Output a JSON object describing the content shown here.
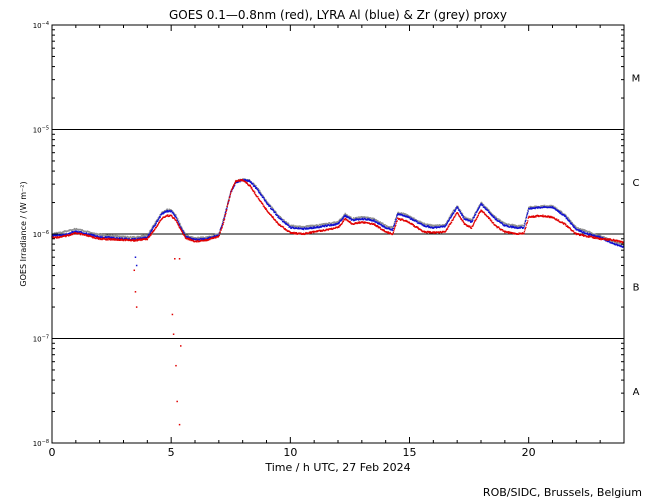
{
  "chart_data": {
    "type": "scatter",
    "title": "GOES 0.1—0.8nm (red), LYRA Al (blue) & Zr (grey) proxy",
    "xlabel": "Time / h UTC, 27 Feb 2024",
    "ylabel": "GOES Irradiance / (W m⁻²)",
    "credit": "ROB/SIDC, Brussels, Belgium",
    "xlim": [
      0,
      24
    ],
    "ylim": [
      1e-08,
      0.0001
    ],
    "yscale": "log",
    "grid": false,
    "x_ticks": [
      0,
      5,
      10,
      15,
      20
    ],
    "y_tick_labels": [
      {
        "value": 1e-08,
        "base": "10",
        "exp": "−8"
      },
      {
        "value": 1e-07,
        "base": "10",
        "exp": "−7"
      },
      {
        "value": 1e-06,
        "base": "10",
        "exp": "−6"
      },
      {
        "value": 1e-05,
        "base": "10",
        "exp": "−5"
      },
      {
        "value": 0.0001,
        "base": "10",
        "exp": "−4"
      }
    ],
    "flare_class_lines": [
      1e-07,
      1e-06,
      1e-05
    ],
    "flare_classes": [
      {
        "label": "A",
        "value": 3.16e-08
      },
      {
        "label": "B",
        "value": 3.16e-07
      },
      {
        "label": "C",
        "value": 3.16e-06
      },
      {
        "label": "M",
        "value": 3.16e-05
      }
    ],
    "colors": {
      "goes": "#e00000",
      "lyra_al": "#1010d0",
      "lyra_zr": "#909090"
    },
    "series": [
      {
        "color": "#e00000",
        "points": [
          [
            0,
            9.2e-07
          ],
          [
            0.5,
            9.5e-07
          ],
          [
            1,
            1.02e-06
          ],
          [
            1.5,
            9.6e-07
          ],
          [
            2,
            9e-07
          ],
          [
            2.5,
            8.9e-07
          ],
          [
            3,
            8.8e-07
          ],
          [
            3.5,
            8.7e-07
          ],
          [
            4,
            9e-07
          ],
          [
            4.3,
            1.1e-06
          ],
          [
            4.6,
            1.4e-06
          ],
          [
            4.8,
            1.5e-06
          ],
          [
            5,
            1.5e-06
          ],
          [
            5.2,
            1.35e-06
          ],
          [
            5.4,
            1.1e-06
          ],
          [
            5.6,
            9.2e-07
          ],
          [
            6,
            8.5e-07
          ],
          [
            6.5,
            8.8e-07
          ],
          [
            7,
            9.5e-07
          ],
          [
            7.2,
            1.3e-06
          ],
          [
            7.5,
            2.5e-06
          ],
          [
            7.7,
            3.2e-06
          ],
          [
            8,
            3.3e-06
          ],
          [
            8.3,
            2.9e-06
          ],
          [
            8.6,
            2.3e-06
          ],
          [
            9,
            1.7e-06
          ],
          [
            9.5,
            1.25e-06
          ],
          [
            10,
            1.03e-06
          ],
          [
            10.5,
            1e-06
          ],
          [
            11,
            1.05e-06
          ],
          [
            11.5,
            1.1e-06
          ],
          [
            12,
            1.15e-06
          ],
          [
            12.3,
            1.4e-06
          ],
          [
            12.6,
            1.25e-06
          ],
          [
            13,
            1.3e-06
          ],
          [
            13.5,
            1.25e-06
          ],
          [
            14,
            1.05e-06
          ],
          [
            14.3,
            1e-06
          ],
          [
            14.5,
            1.4e-06
          ],
          [
            14.8,
            1.35e-06
          ],
          [
            15.2,
            1.2e-06
          ],
          [
            15.6,
            1.05e-06
          ],
          [
            16,
            1.03e-06
          ],
          [
            16.5,
            1.05e-06
          ],
          [
            16.8,
            1.35e-06
          ],
          [
            17,
            1.6e-06
          ],
          [
            17.3,
            1.25e-06
          ],
          [
            17.6,
            1.15e-06
          ],
          [
            18,
            1.7e-06
          ],
          [
            18.3,
            1.45e-06
          ],
          [
            18.6,
            1.2e-06
          ],
          [
            19,
            1.05e-06
          ],
          [
            19.5,
            1e-06
          ],
          [
            19.8,
            1.02e-06
          ],
          [
            20,
            1.45e-06
          ],
          [
            20.5,
            1.5e-06
          ],
          [
            21,
            1.45e-06
          ],
          [
            21.5,
            1.25e-06
          ],
          [
            22,
            1e-06
          ],
          [
            22.5,
            9.5e-07
          ],
          [
            23,
            9e-07
          ],
          [
            23.5,
            8.8e-07
          ],
          [
            24,
            8.3e-07
          ]
        ]
      },
      {
        "color": "#1010d0",
        "points": [
          [
            0,
            9.6e-07
          ],
          [
            0.5,
            9.8e-07
          ],
          [
            1,
            1.06e-06
          ],
          [
            1.5,
            1e-06
          ],
          [
            2,
            9.4e-07
          ],
          [
            2.5,
            9.2e-07
          ],
          [
            3,
            9e-07
          ],
          [
            3.5,
            8.9e-07
          ],
          [
            4,
            9.3e-07
          ],
          [
            4.3,
            1.2e-06
          ],
          [
            4.6,
            1.55e-06
          ],
          [
            4.8,
            1.65e-06
          ],
          [
            5,
            1.65e-06
          ],
          [
            5.2,
            1.45e-06
          ],
          [
            5.4,
            1.15e-06
          ],
          [
            5.6,
            9.5e-07
          ],
          [
            6,
            8.8e-07
          ],
          [
            6.5,
            9e-07
          ],
          [
            7,
            9.8e-07
          ],
          [
            7.2,
            1.35e-06
          ],
          [
            7.5,
            2.5e-06
          ],
          [
            7.7,
            3.1e-06
          ],
          [
            8,
            3.3e-06
          ],
          [
            8.3,
            3.2e-06
          ],
          [
            8.6,
            2.7e-06
          ],
          [
            9,
            2e-06
          ],
          [
            9.5,
            1.45e-06
          ],
          [
            10,
            1.15e-06
          ],
          [
            10.5,
            1.12e-06
          ],
          [
            11,
            1.15e-06
          ],
          [
            11.5,
            1.2e-06
          ],
          [
            12,
            1.25e-06
          ],
          [
            12.3,
            1.5e-06
          ],
          [
            12.6,
            1.35e-06
          ],
          [
            13,
            1.4e-06
          ],
          [
            13.5,
            1.35e-06
          ],
          [
            14,
            1.15e-06
          ],
          [
            14.3,
            1.1e-06
          ],
          [
            14.5,
            1.55e-06
          ],
          [
            14.8,
            1.5e-06
          ],
          [
            15.2,
            1.35e-06
          ],
          [
            15.6,
            1.2e-06
          ],
          [
            16,
            1.15e-06
          ],
          [
            16.5,
            1.18e-06
          ],
          [
            16.8,
            1.55e-06
          ],
          [
            17,
            1.8e-06
          ],
          [
            17.3,
            1.4e-06
          ],
          [
            17.6,
            1.3e-06
          ],
          [
            18,
            1.95e-06
          ],
          [
            18.3,
            1.65e-06
          ],
          [
            18.6,
            1.4e-06
          ],
          [
            19,
            1.2e-06
          ],
          [
            19.5,
            1.15e-06
          ],
          [
            19.8,
            1.15e-06
          ],
          [
            20,
            1.75e-06
          ],
          [
            20.5,
            1.8e-06
          ],
          [
            21,
            1.8e-06
          ],
          [
            21.5,
            1.5e-06
          ],
          [
            22,
            1.1e-06
          ],
          [
            22.5,
            1e-06
          ],
          [
            23,
            9.3e-07
          ],
          [
            23.5,
            8.2e-07
          ],
          [
            24,
            7.5e-07
          ]
        ]
      },
      {
        "color": "#909090",
        "points": [
          [
            0,
            1e-06
          ],
          [
            0.5,
            1.05e-06
          ],
          [
            1,
            1.12e-06
          ],
          [
            1.5,
            1.05e-06
          ],
          [
            2,
            9.8e-07
          ],
          [
            2.5,
            9.6e-07
          ],
          [
            3,
            9.4e-07
          ],
          [
            3.5,
            9.3e-07
          ],
          [
            4,
            9.7e-07
          ],
          [
            4.3,
            1.25e-06
          ],
          [
            4.6,
            1.6e-06
          ],
          [
            4.8,
            1.7e-06
          ],
          [
            5,
            1.7e-06
          ],
          [
            5.2,
            1.5e-06
          ],
          [
            5.4,
            1.2e-06
          ],
          [
            5.6,
            9.8e-07
          ],
          [
            6,
            9.1e-07
          ],
          [
            6.5,
            9.3e-07
          ],
          [
            7,
            1e-06
          ],
          [
            7.2,
            1.4e-06
          ],
          [
            7.5,
            2.55e-06
          ],
          [
            7.7,
            3.15e-06
          ],
          [
            8,
            3.35e-06
          ],
          [
            8.3,
            3.25e-06
          ],
          [
            8.6,
            2.8e-06
          ],
          [
            9,
            2.05e-06
          ],
          [
            9.5,
            1.5e-06
          ],
          [
            10,
            1.2e-06
          ],
          [
            10.5,
            1.17e-06
          ],
          [
            11,
            1.2e-06
          ],
          [
            11.5,
            1.25e-06
          ],
          [
            12,
            1.3e-06
          ],
          [
            12.3,
            1.55e-06
          ],
          [
            12.6,
            1.4e-06
          ],
          [
            13,
            1.45e-06
          ],
          [
            13.5,
            1.4e-06
          ],
          [
            14,
            1.2e-06
          ],
          [
            14.3,
            1.15e-06
          ],
          [
            14.5,
            1.6e-06
          ],
          [
            14.8,
            1.55e-06
          ],
          [
            15.2,
            1.4e-06
          ],
          [
            15.6,
            1.25e-06
          ],
          [
            16,
            1.2e-06
          ],
          [
            16.5,
            1.22e-06
          ],
          [
            16.8,
            1.6e-06
          ],
          [
            17,
            1.85e-06
          ],
          [
            17.3,
            1.45e-06
          ],
          [
            17.6,
            1.35e-06
          ],
          [
            18,
            2e-06
          ],
          [
            18.3,
            1.7e-06
          ],
          [
            18.6,
            1.45e-06
          ],
          [
            19,
            1.25e-06
          ],
          [
            19.5,
            1.2e-06
          ],
          [
            19.8,
            1.2e-06
          ],
          [
            20,
            1.8e-06
          ],
          [
            20.5,
            1.85e-06
          ],
          [
            21,
            1.85e-06
          ],
          [
            21.5,
            1.55e-06
          ],
          [
            22,
            1.15e-06
          ],
          [
            22.5,
            1.05e-06
          ],
          [
            23,
            9.6e-07
          ],
          [
            23.5,
            8.6e-07
          ],
          [
            24,
            7.8e-07
          ]
        ]
      }
    ],
    "outlier_points": [
      {
        "color": "#e00000",
        "points": [
          [
            3.45,
            4.5e-07
          ],
          [
            3.5,
            2.8e-07
          ],
          [
            3.55,
            2e-07
          ],
          [
            5.05,
            1.7e-07
          ],
          [
            5.1,
            1.1e-07
          ],
          [
            5.2,
            5.5e-08
          ],
          [
            5.25,
            2.5e-08
          ],
          [
            5.35,
            1.5e-08
          ],
          [
            5.4,
            8.5e-08
          ],
          [
            5.15,
            5.8e-07
          ],
          [
            5.35,
            5.8e-07
          ]
        ]
      },
      {
        "color": "#1010d0",
        "points": [
          [
            3.5,
            6e-07
          ],
          [
            3.55,
            5e-07
          ]
        ]
      }
    ]
  }
}
